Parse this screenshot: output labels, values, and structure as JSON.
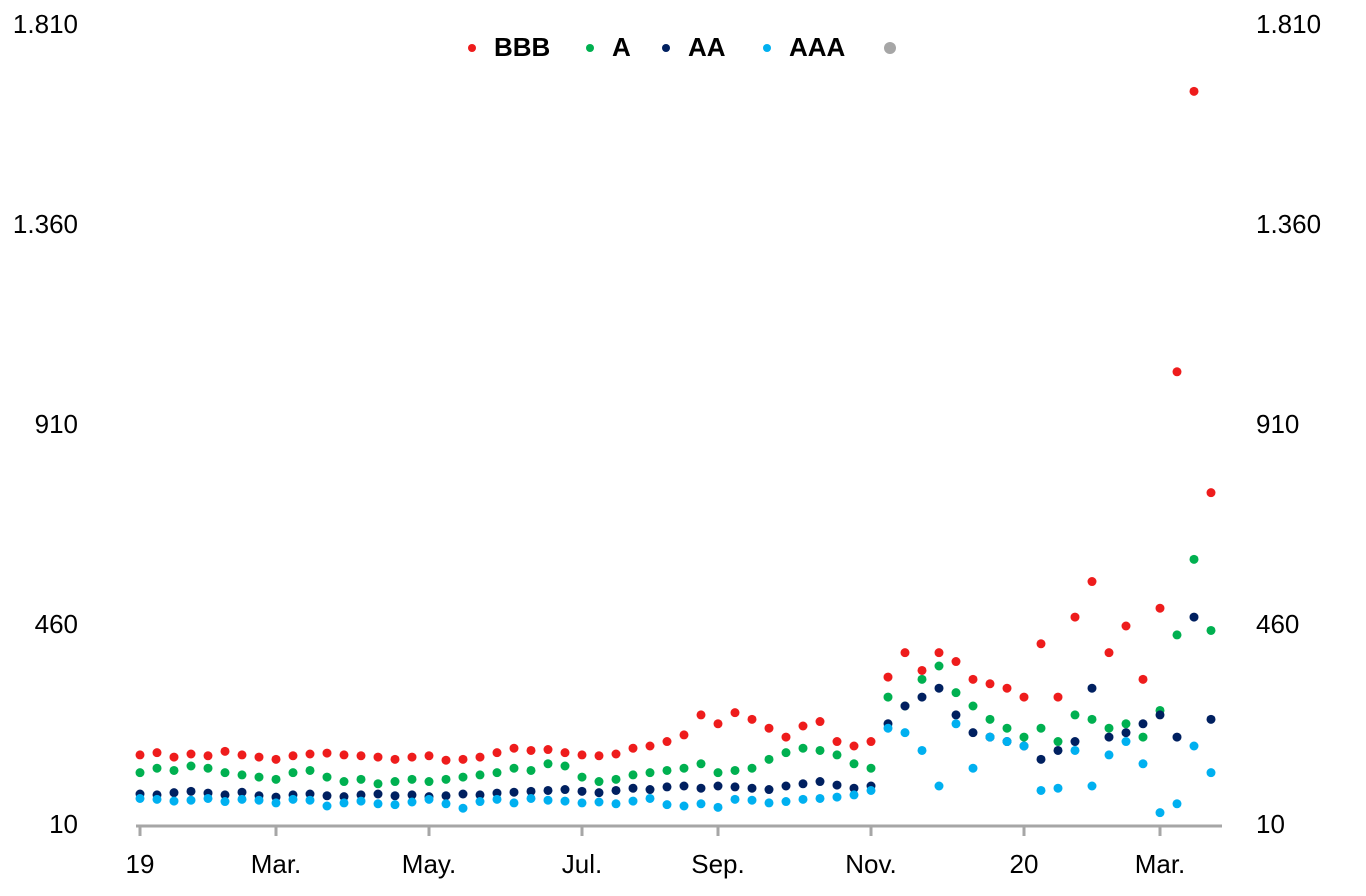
{
  "chart_data": {
    "type": "scatter",
    "categories": [
      "19",
      null,
      null,
      null,
      null,
      null,
      null,
      null,
      "Mar.",
      null,
      null,
      null,
      null,
      null,
      null,
      null,
      null,
      "May.",
      null,
      null,
      null,
      null,
      null,
      null,
      null,
      null,
      "Jul.",
      null,
      null,
      null,
      null,
      null,
      null,
      null,
      "Sep.",
      null,
      null,
      null,
      null,
      null,
      null,
      null,
      null,
      "Nov.",
      null,
      null,
      null,
      null,
      null,
      null,
      null,
      null,
      "20",
      null,
      null,
      null,
      null,
      null,
      null,
      null,
      "Mar.",
      null,
      null,
      null
    ],
    "series": [
      {
        "name": "BBB",
        "color": "#ee1c1c",
        "values": [
          170,
          175,
          165,
          172,
          168,
          178,
          170,
          165,
          160,
          168,
          172,
          174,
          170,
          168,
          165,
          160,
          165,
          168,
          158,
          160,
          165,
          175,
          185,
          180,
          182,
          175,
          170,
          168,
          172,
          185,
          190,
          200,
          215,
          260,
          240,
          265,
          250,
          230,
          210,
          235,
          245,
          200,
          190,
          200,
          345,
          400,
          360,
          400,
          380,
          340,
          330,
          320,
          300,
          420,
          300,
          480,
          560,
          400,
          460,
          340,
          500,
          1032,
          1663,
          760
        ]
      },
      {
        "name": "A",
        "color": "#00b050",
        "values": [
          130,
          140,
          135,
          145,
          140,
          130,
          125,
          120,
          115,
          130,
          135,
          120,
          110,
          115,
          105,
          110,
          115,
          110,
          115,
          120,
          125,
          130,
          140,
          135,
          150,
          145,
          120,
          110,
          115,
          125,
          130,
          135,
          140,
          150,
          130,
          135,
          140,
          160,
          175,
          185,
          180,
          170,
          150,
          140,
          300,
          280,
          340,
          370,
          310,
          280,
          250,
          230,
          210,
          230,
          200,
          260,
          250,
          230,
          240,
          210,
          270,
          440,
          610,
          450
        ]
      },
      {
        "name": "AA",
        "color": "#002060",
        "values": [
          82,
          80,
          85,
          88,
          84,
          80,
          86,
          78,
          75,
          80,
          82,
          78,
          76,
          80,
          82,
          78,
          80,
          76,
          78,
          82,
          80,
          84,
          86,
          88,
          90,
          92,
          88,
          85,
          90,
          95,
          92,
          98,
          100,
          95,
          100,
          98,
          95,
          92,
          100,
          105,
          110,
          102,
          95,
          100,
          240,
          280,
          300,
          320,
          260,
          220,
          210,
          200,
          190,
          160,
          180,
          200,
          320,
          210,
          220,
          240,
          260,
          210,
          480,
          250
        ]
      },
      {
        "name": "AAA",
        "color": "#00b0f0",
        "values": [
          72,
          70,
          66,
          68,
          72,
          65,
          70,
          68,
          62,
          70,
          68,
          55,
          62,
          66,
          60,
          58,
          64,
          70,
          60,
          50,
          65,
          70,
          62,
          72,
          68,
          66,
          62,
          64,
          60,
          66,
          72,
          58,
          55,
          60,
          52,
          70,
          68,
          62,
          65,
          70,
          72,
          75,
          80,
          90,
          230,
          220,
          180,
          100,
          240,
          140,
          210,
          200,
          190,
          90,
          95,
          180,
          100,
          170,
          200,
          150,
          40,
          60,
          190,
          130
        ]
      }
    ],
    "ylim": [
      10,
      1810
    ],
    "yticks": [
      10,
      460,
      910,
      {
        "value": 1360,
        "label": "1.360"
      },
      {
        "value": 1810,
        "label": "1.810"
      }
    ],
    "y2lim": [
      10,
      1810
    ],
    "y2ticks": [
      10,
      460,
      910,
      {
        "value": 1360,
        "label": "1.360"
      },
      {
        "value": 1810,
        "label": "1.810"
      }
    ]
  }
}
